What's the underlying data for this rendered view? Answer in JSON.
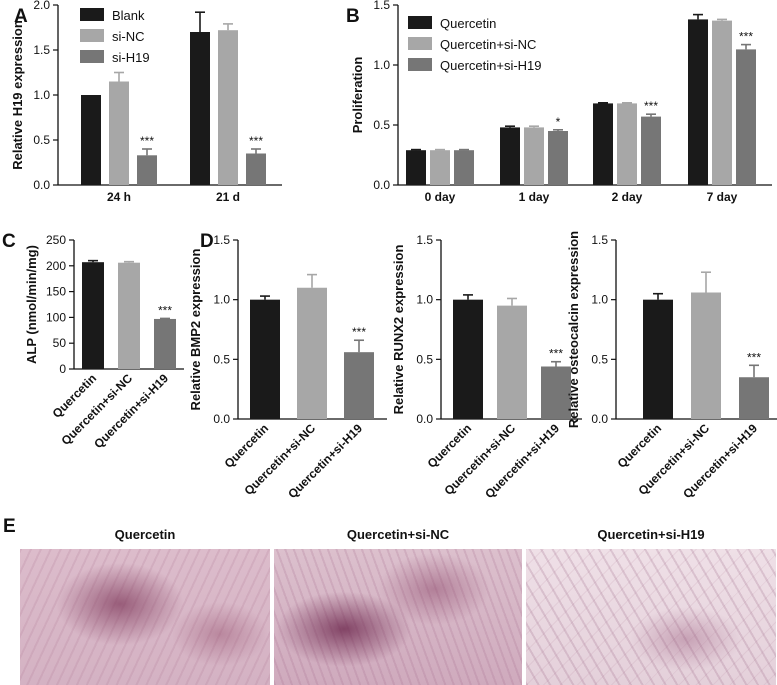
{
  "colors": {
    "black": "#1a1a1a",
    "light": "#a7a7a7",
    "dark": "#767676",
    "text": "#111111"
  },
  "chart_data": [
    {
      "panel": "A",
      "type": "bar",
      "ylabel": "Relative H19 expression",
      "categories": [
        "24 h",
        "21 d"
      ],
      "ylim": [
        0,
        2.0
      ],
      "yticks": [
        "0.0",
        "0.5",
        "1.0",
        "1.5",
        "2.0"
      ],
      "series": [
        {
          "name": "Blank",
          "values": [
            1.0,
            1.7
          ],
          "errors": [
            0.0,
            0.22
          ]
        },
        {
          "name": "si-NC",
          "values": [
            1.15,
            1.72
          ],
          "errors": [
            0.1,
            0.07
          ]
        },
        {
          "name": "si-H19",
          "values": [
            0.33,
            0.35
          ],
          "errors": [
            0.07,
            0.05
          ]
        }
      ],
      "annotations": [
        {
          "series": 2,
          "category": 0,
          "text": "***"
        },
        {
          "series": 2,
          "category": 1,
          "text": "***"
        }
      ],
      "legend": "top-left"
    },
    {
      "panel": "B",
      "type": "bar",
      "ylabel": "Proliferation",
      "categories": [
        "0 day",
        "1 day",
        "2 day",
        "7 day"
      ],
      "ylim": [
        0,
        1.5
      ],
      "yticks": [
        "0.0",
        "0.5",
        "1.0",
        "1.5"
      ],
      "series": [
        {
          "name": "Quercetin",
          "values": [
            0.29,
            0.48,
            0.68,
            1.38
          ],
          "errors": [
            0.005,
            0.01,
            0.005,
            0.04
          ]
        },
        {
          "name": "Quercetin+si-NC",
          "values": [
            0.29,
            0.48,
            0.68,
            1.37
          ],
          "errors": [
            0.005,
            0.01,
            0.005,
            0.01
          ]
        },
        {
          "name": "Quercetin+si-H19",
          "values": [
            0.29,
            0.45,
            0.57,
            1.13
          ],
          "errors": [
            0.005,
            0.01,
            0.02,
            0.04
          ]
        }
      ],
      "annotations": [
        {
          "series": 2,
          "category": 1,
          "text": "*"
        },
        {
          "series": 2,
          "category": 2,
          "text": "***"
        },
        {
          "series": 2,
          "category": 3,
          "text": "***"
        }
      ],
      "legend": "top-left"
    },
    {
      "panel": "C",
      "type": "bar",
      "ylabel": "ALP (nmol/min/mg)",
      "categories": [
        "Quercetin",
        "Quercetin+si-NC",
        "Quercetin+si-H19"
      ],
      "ylim": [
        0,
        250
      ],
      "yticks": [
        "0",
        "50",
        "100",
        "150",
        "200",
        "250"
      ],
      "values": [
        207,
        206,
        97
      ],
      "errors": [
        3,
        2,
        1
      ],
      "annotations": [
        {
          "category": 2,
          "text": "***"
        }
      ]
    },
    {
      "panel": "D",
      "type": "bar",
      "ylabel": "Relative BMP2 expression",
      "categories": [
        "Quercetin",
        "Quercetin+si-NC",
        "Quercetin+si-H19"
      ],
      "ylim": [
        0,
        1.5
      ],
      "yticks": [
        "0.0",
        "0.5",
        "1.0",
        "1.5"
      ],
      "values": [
        1.0,
        1.1,
        0.56
      ],
      "errors": [
        0.03,
        0.11,
        0.1
      ],
      "annotations": [
        {
          "category": 2,
          "text": "***"
        }
      ]
    },
    {
      "panel": "",
      "type": "bar",
      "ylabel": "Relative RUNX2 expression",
      "categories": [
        "Quercetin",
        "Quercetin+si-NC",
        "Quercetin+si-H19"
      ],
      "ylim": [
        0,
        1.5
      ],
      "yticks": [
        "0.0",
        "0.5",
        "1.0",
        "1.5"
      ],
      "values": [
        1.0,
        0.95,
        0.44
      ],
      "errors": [
        0.04,
        0.06,
        0.04
      ],
      "annotations": [
        {
          "category": 2,
          "text": "***"
        }
      ]
    },
    {
      "panel": "",
      "type": "bar",
      "ylabel": "Relative osteocalcin expression",
      "categories": [
        "Quercetin",
        "Quercetin+si-NC",
        "Quercetin+si-H19"
      ],
      "ylim": [
        0,
        1.5
      ],
      "yticks": [
        "0.0",
        "0.5",
        "1.0",
        "1.5"
      ],
      "values": [
        1.0,
        1.06,
        0.35
      ],
      "errors": [
        0.05,
        0.17,
        0.1
      ],
      "annotations": [
        {
          "category": 2,
          "text": "***"
        }
      ]
    }
  ],
  "micrographs": {
    "panel": "E",
    "titles": [
      "Quercetin",
      "Quercetin+si-NC",
      "Quercetin+si-H19"
    ]
  }
}
